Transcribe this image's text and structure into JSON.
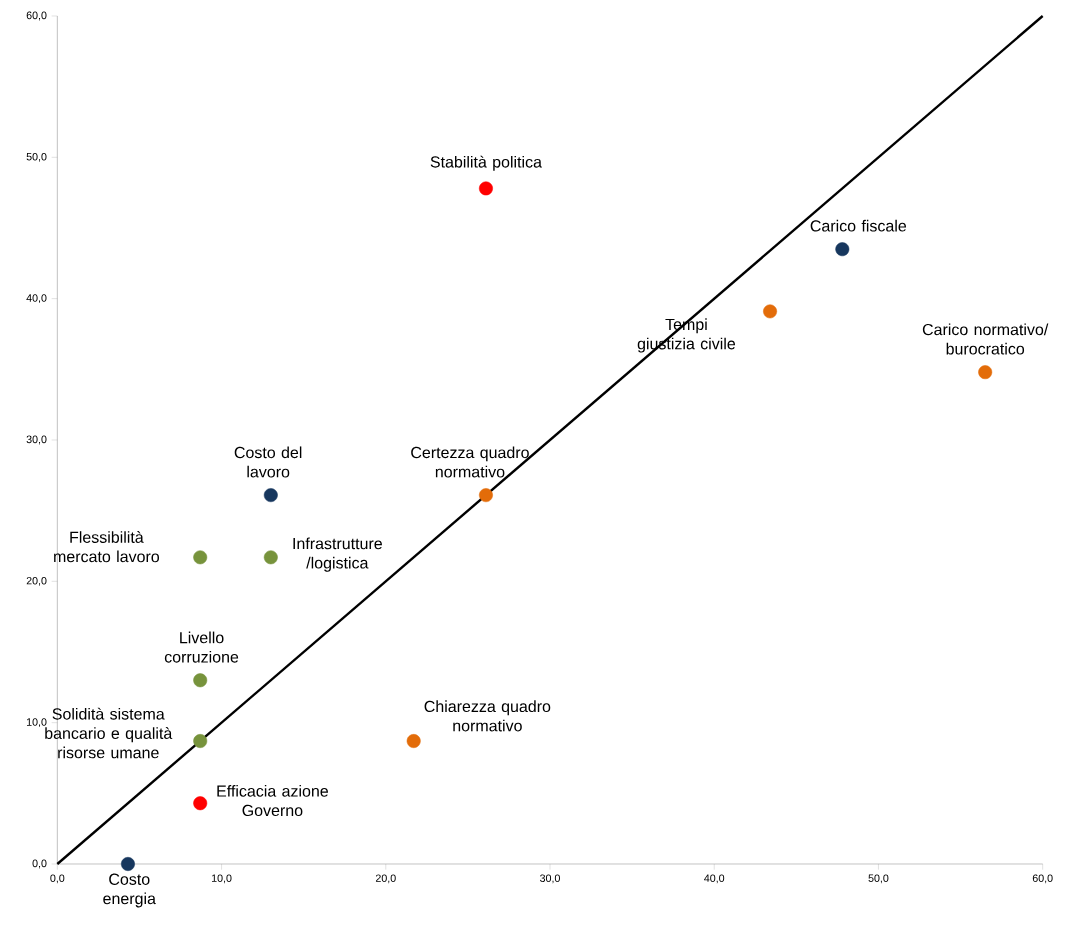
{
  "chart_data": {
    "type": "scatter",
    "grid": false,
    "xlim": [
      0,
      60
    ],
    "ylim": [
      0,
      60
    ],
    "xticks": [
      {
        "value": 0,
        "label": "0,0"
      },
      {
        "value": 10,
        "label": "10,0"
      },
      {
        "value": 20,
        "label": "20,0"
      },
      {
        "value": 30,
        "label": "30,0"
      },
      {
        "value": 40,
        "label": "40,0"
      },
      {
        "value": 50,
        "label": "50,0"
      },
      {
        "value": 60,
        "label": "60,0"
      }
    ],
    "yticks": [
      {
        "value": 0,
        "label": "0,0"
      },
      {
        "value": 10,
        "label": "10,0"
      },
      {
        "value": 20,
        "label": "20,0"
      },
      {
        "value": 30,
        "label": "30,0"
      },
      {
        "value": 40,
        "label": "40,0"
      },
      {
        "value": 50,
        "label": "50,0"
      },
      {
        "value": 60,
        "label": "60,0"
      }
    ],
    "series": [
      {
        "marker": "circle",
        "x": [
          26.1,
          47.8,
          43.4,
          56.5,
          13.0,
          26.1,
          8.7,
          13.0,
          8.7,
          8.7,
          21.7,
          8.7,
          4.3
        ],
        "values": [
          47.8,
          43.5,
          39.1,
          34.8,
          26.1,
          26.1,
          21.7,
          21.7,
          13.0,
          8.7,
          8.7,
          4.3,
          0
        ],
        "colors": [
          "#ff0000",
          "#17375e",
          "#e36c09",
          "#e36c09",
          "#17375e",
          "#e36c09",
          "#77933c",
          "#77933c",
          "#77933c",
          "#77933c",
          "#e36c09",
          "#ff0000",
          "#17375e"
        ]
      },
      {
        "type": "line",
        "x": [
          0,
          60
        ],
        "values": [
          0,
          60
        ],
        "color": "#000000",
        "line_style": "solid"
      }
    ],
    "annotations": [
      {
        "text": "Stabilità politica",
        "x": 26.1,
        "y": 47.8
      },
      {
        "text": "Carico fiscale",
        "x": 47.8,
        "y": 43.5
      },
      {
        "text": "Tempi giustizia civile",
        "x": 43.4,
        "y": 39.1
      },
      {
        "text": "Carico normativo/ burocratico",
        "x": 56.5,
        "y": 34.8
      },
      {
        "text": "Costo del lavoro",
        "x": 13.0,
        "y": 26.1
      },
      {
        "text": "Certezza quadro normativo",
        "x": 26.1,
        "y": 26.1
      },
      {
        "text": "Flessibilità mercato lavoro",
        "x": 8.7,
        "y": 21.7
      },
      {
        "text": "Infrastrutture /logistica",
        "x": 13.0,
        "y": 21.7
      },
      {
        "text": "Livello corruzione",
        "x": 8.7,
        "y": 13.0
      },
      {
        "text": "Solidità sistema bancario e qualità risorse umane",
        "x": 8.7,
        "y": 8.7
      },
      {
        "text": "Chiarezza quadro normativo",
        "x": 21.7,
        "y": 8.7
      },
      {
        "text": "Efficacia azione Governo",
        "x": 8.7,
        "y": 4.3
      },
      {
        "text": "Costo energia",
        "x": 4.3,
        "y": 0
      }
    ]
  }
}
